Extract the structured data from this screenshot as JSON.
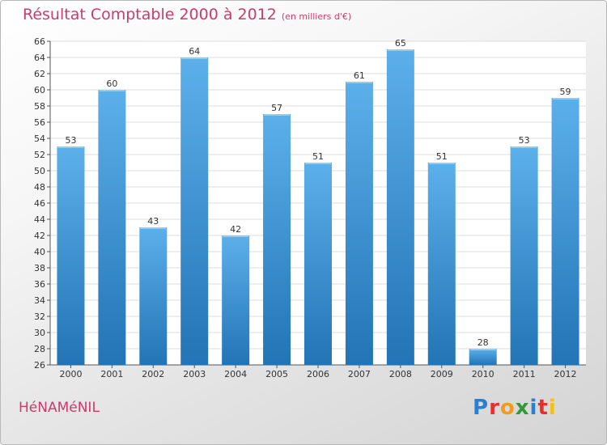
{
  "header": {
    "title": "Résultat Comptable 2000 à 2012",
    "subtitle": "(en milliers d'€)"
  },
  "footer": {
    "commune": "HéNAMéNIL",
    "logo_letters": [
      {
        "ch": "P",
        "color": "#2b7fd0"
      },
      {
        "ch": "r",
        "color": "#e53030"
      },
      {
        "ch": "o",
        "color": "#f29a1a"
      },
      {
        "ch": "x",
        "color": "#2e9b3a"
      },
      {
        "ch": "i",
        "color": "#2b7fd0"
      },
      {
        "ch": "t",
        "color": "#e53030"
      },
      {
        "ch": "i",
        "color": "#f2c21a"
      }
    ]
  },
  "colors": {
    "bar_light": "#5cb0ea",
    "bar_dark": "#2274b5",
    "grid": "#dddddd"
  },
  "chart_data": {
    "type": "bar",
    "title": "Résultat Comptable 2000 à 2012",
    "subtitle": "(en milliers d'€)",
    "xlabel": "",
    "ylabel": "",
    "categories": [
      "2000",
      "2001",
      "2002",
      "2003",
      "2004",
      "2005",
      "2006",
      "2007",
      "2008",
      "2009",
      "2010",
      "2011",
      "2012"
    ],
    "values": [
      53,
      60,
      43,
      64,
      42,
      57,
      51,
      61,
      65,
      51,
      28,
      53,
      59
    ],
    "ylim": [
      26,
      66
    ],
    "ytick_step": 2,
    "grid": true
  }
}
